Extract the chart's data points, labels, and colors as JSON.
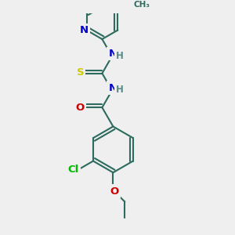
{
  "bg_color": "#efefef",
  "bond_color": "#2d6b5e",
  "bond_width": 1.5,
  "dbo": 0.12,
  "atom_colors": {
    "N": "#0000cc",
    "O": "#cc0000",
    "S": "#cccc00",
    "Cl": "#00bb00",
    "H": "#5a8a8a"
  },
  "font_size": 8.5,
  "fig_size": [
    3.0,
    3.0
  ],
  "dpi": 100
}
